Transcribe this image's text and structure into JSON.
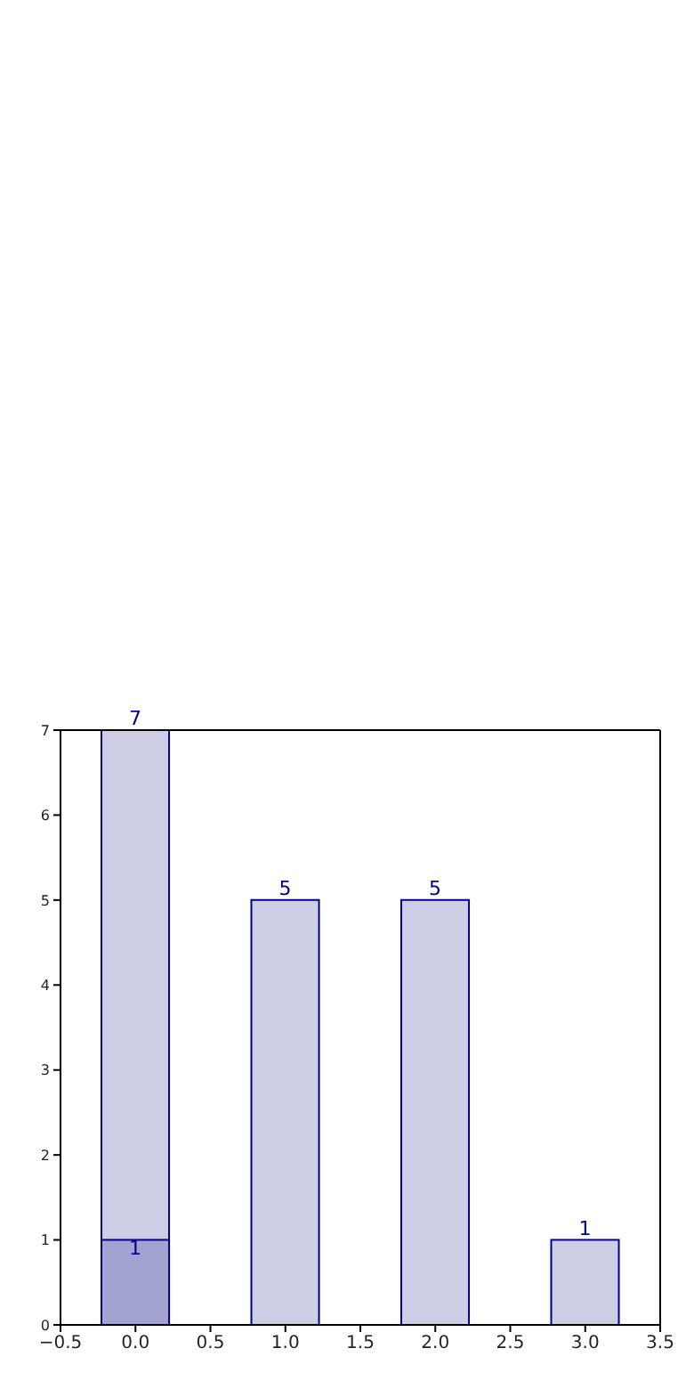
{
  "chart_data": {
    "type": "bar",
    "x": [
      0,
      1,
      2,
      3
    ],
    "series": [
      {
        "color": "#cdcde6",
        "values": [
          7,
          5,
          5,
          1
        ]
      },
      {
        "color": "#a3a3d1",
        "values": [
          1,
          null,
          null,
          null
        ]
      }
    ],
    "xlim": [
      -0.5,
      3.5
    ],
    "xticks": [
      -0.5,
      {
        "value": 0,
        "label": "0.0"
      },
      0.5,
      {
        "value": 1,
        "label": "1.0"
      },
      1.5,
      {
        "value": 2,
        "label": "2.0"
      },
      2.5,
      {
        "value": 3,
        "label": "3.0"
      },
      3.5
    ],
    "ylim": [
      0,
      7
    ],
    "yticks": [
      0,
      1,
      2,
      3,
      4,
      5,
      6,
      7
    ],
    "data_labels": true,
    "grid": false,
    "legend": false
  }
}
